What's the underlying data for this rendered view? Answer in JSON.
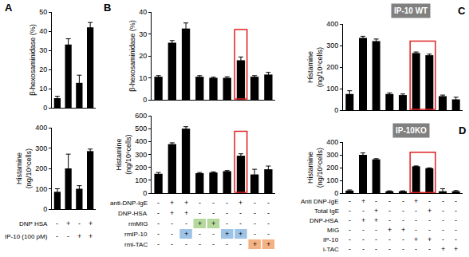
{
  "chart_data": [
    {
      "panel": "A",
      "type": "bar",
      "ylabel": [
        "β-hexosaminidase (%)"
      ],
      "categories": [
        null,
        null,
        null,
        null
      ],
      "values": [
        5,
        33,
        13,
        42
      ],
      "errors": [
        1,
        3,
        4,
        2.5
      ],
      "ylim": [
        0,
        50
      ],
      "yticks": [
        0,
        10,
        20,
        30,
        40,
        50
      ],
      "tick_labels": "y",
      "color": "#000000"
    },
    {
      "type": "bar",
      "ylabel": [
        "Histamine",
        "(ng/10⁶cells)"
      ],
      "categories": [
        null,
        null,
        null,
        null
      ],
      "values": [
        85,
        200,
        100,
        285
      ],
      "errors": [
        15,
        70,
        15,
        10
      ],
      "ylim": [
        0,
        400
      ],
      "yticks": [
        0,
        100,
        200,
        300,
        400
      ],
      "tick_labels": "y",
      "color": "#000000",
      "conditions": [
        {
          "label": "DNP HSA",
          "values": [
            "-",
            "+",
            "-",
            "+"
          ]
        },
        {
          "label": "IP-10 (100 pM)",
          "values": [
            "-",
            "-",
            "+",
            "+"
          ]
        }
      ]
    },
    {
      "panel": "B",
      "type": "bar",
      "ylabel": [
        "β-hexosaminidase (%)"
      ],
      "categories": [
        null,
        null,
        null,
        null,
        null,
        null,
        null,
        null,
        null
      ],
      "values": [
        10.5,
        26,
        32.5,
        10.5,
        10,
        10,
        18,
        10.5,
        11.5
      ],
      "errors": [
        0.5,
        1,
        2.5,
        0.5,
        0.3,
        0.5,
        1.5,
        0.5,
        1
      ],
      "ylim": [
        0,
        40
      ],
      "yticks": [
        0,
        10,
        20,
        30,
        40
      ],
      "tick_labels": "y",
      "color": "#000000",
      "boxed": [
        6
      ]
    },
    {
      "type": "bar",
      "ylabel": [
        "Histamine",
        "(ng/10⁶cells)"
      ],
      "categories": [
        null,
        null,
        null,
        null,
        null,
        null,
        null,
        null,
        null
      ],
      "values": [
        150,
        380,
        500,
        155,
        160,
        170,
        290,
        145,
        185
      ],
      "errors": [
        10,
        10,
        15,
        5,
        5,
        5,
        15,
        40,
        25
      ],
      "ylim": [
        0,
        600
      ],
      "yticks": [
        0,
        100,
        200,
        300,
        400,
        500,
        600
      ],
      "tick_labels": "y",
      "color": "#000000",
      "boxed": [
        6
      ],
      "conditions": [
        {
          "label": "anti-DNP-IgE",
          "values": [
            "-",
            "+",
            "+",
            "-",
            "-",
            "-",
            "+",
            "-",
            "-"
          ]
        },
        {
          "label": "DNP-HSA",
          "values": [
            "-",
            "+",
            "+",
            "-",
            "-",
            "-",
            "-",
            "-",
            "-"
          ]
        },
        {
          "label": "rmMIG",
          "values": [
            "-",
            "-",
            "-",
            "+",
            "+",
            "-",
            "-",
            "-",
            "-"
          ],
          "color": "#b5d99c"
        },
        {
          "label": "rmIP-10",
          "values": [
            "-",
            "-",
            "+",
            "-",
            "-",
            "+",
            "+",
            "-",
            "-"
          ],
          "color": "#9dc3e6"
        },
        {
          "label": "rmi-TAC",
          "values": [
            "-",
            "-",
            "-",
            "-",
            "-",
            "-",
            "-",
            "+",
            "+"
          ],
          "color": "#f4b183"
        }
      ]
    },
    {
      "panel": "C",
      "annotation": "IP-10 WT",
      "type": "bar",
      "ylabel": [
        "Histamine",
        "(ng/10⁶cells)"
      ],
      "categories": [
        null,
        null,
        null,
        null,
        null,
        null,
        null,
        null,
        null
      ],
      "values": [
        75,
        335,
        320,
        75,
        70,
        265,
        255,
        65,
        50
      ],
      "errors": [
        15,
        8,
        10,
        5,
        5,
        5,
        5,
        5,
        10
      ],
      "ylim": [
        0,
        400
      ],
      "yticks": [
        0,
        100,
        200,
        300,
        400
      ],
      "tick_labels": "y",
      "color": "#000000",
      "boxed": [
        5,
        6
      ]
    },
    {
      "panel": "D",
      "annotation": "IP-10KO",
      "type": "bar",
      "ylabel": [
        "Histamine",
        "(ng/10⁶cells)"
      ],
      "categories": [
        null,
        null,
        null,
        null,
        null,
        null,
        null,
        null,
        null
      ],
      "values": [
        20,
        300,
        265,
        15,
        15,
        210,
        195,
        15,
        15
      ],
      "errors": [
        5,
        15,
        5,
        3,
        3,
        3,
        3,
        20,
        5
      ],
      "ylim": [
        0,
        400
      ],
      "yticks": [
        0,
        100,
        200,
        300,
        400
      ],
      "tick_labels": "y",
      "color": "#000000",
      "boxed": [
        5,
        6
      ],
      "conditions": [
        {
          "label": "Anti DNP-IgE",
          "values": [
            "-",
            "+",
            "-",
            "-",
            "-",
            "+",
            "-",
            "-",
            "-"
          ]
        },
        {
          "label": "Total IgE",
          "values": [
            "-",
            "-",
            "+",
            "-",
            "-",
            "-",
            "+",
            "-",
            "-"
          ]
        },
        {
          "label": "DNP-HSA",
          "values": [
            "-",
            "+",
            "+",
            "-",
            "-",
            "-",
            "-",
            "-",
            "-"
          ]
        },
        {
          "label": "MIG",
          "values": [
            "-",
            "-",
            "-",
            "+",
            "+",
            "-",
            "-",
            "-",
            "-"
          ]
        },
        {
          "label": "IP-10",
          "values": [
            "-",
            "-",
            "-",
            "-",
            "-",
            "+",
            "+",
            "-",
            "-"
          ]
        },
        {
          "label": "i-TAC",
          "values": [
            "-",
            "-",
            "-",
            "-",
            "-",
            "-",
            "-",
            "+",
            "+"
          ]
        }
      ]
    }
  ]
}
